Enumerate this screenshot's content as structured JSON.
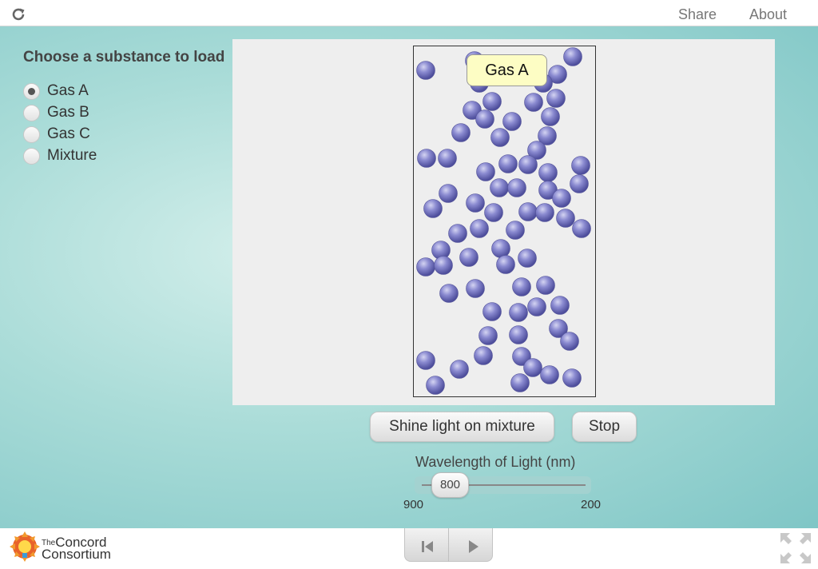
{
  "topbar": {
    "share_label": "Share",
    "about_label": "About",
    "reload_icon": "reload-icon"
  },
  "panel": {
    "title": "Choose a substance to load",
    "options": [
      {
        "label": "Gas A",
        "checked": true
      },
      {
        "label": "Gas B",
        "checked": false
      },
      {
        "label": "Gas C",
        "checked": false
      },
      {
        "label": "Mixture",
        "checked": false
      }
    ]
  },
  "simulation": {
    "tooltip": "Gas A",
    "molecule_color": "#7c7cc8",
    "molecule_count": 68
  },
  "buttons": {
    "shine_label": "Shine light on mixture",
    "stop_label": "Stop"
  },
  "slider": {
    "title": "Wavelength of Light (nm)",
    "value": "800",
    "min_label": "900",
    "max_label": "200"
  },
  "footer": {
    "brand_the": "The",
    "brand_line1": "Concord",
    "brand_line2": "Consortium"
  },
  "colors": {
    "accent": "#7fc6c6",
    "molecule": "#7c7cc8",
    "tooltip_bg": "#fdfdc4"
  }
}
